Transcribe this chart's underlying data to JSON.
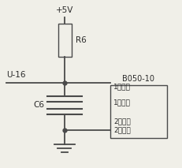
{
  "bg_color": "#f0efe8",
  "line_color": "#4a4a4a",
  "text_color": "#2a2a2a",
  "vcc_label": "+5V",
  "u_label": "U-16",
  "r_label": "R6",
  "c_label": "C6",
  "box_label": "B050-10",
  "box_text1": "1第一温",
  "box_text2": "2度开关",
  "lw": 1.0,
  "fig_width": 2.32,
  "fig_height": 2.13
}
